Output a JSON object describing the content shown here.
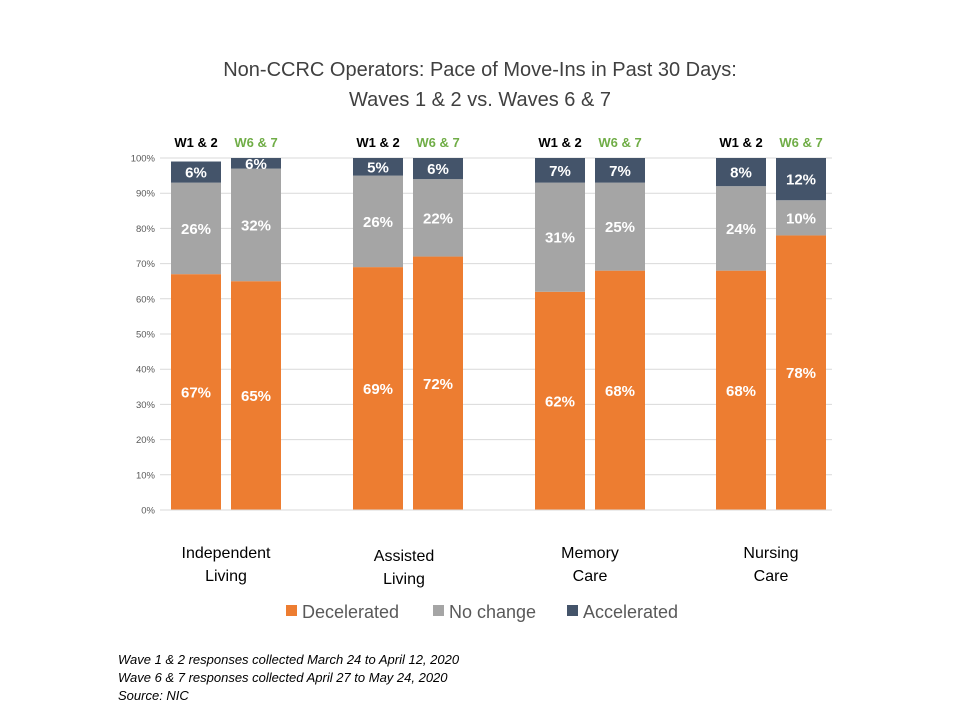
{
  "chart_data": {
    "type": "bar",
    "stacked": true,
    "title_lines": [
      "Non-CCRC Operators: Pace of Move-Ins in Past 30 Days:",
      "Waves 1 & 2 vs. Waves 6 & 7"
    ],
    "categories": [
      {
        "name": "Independent Living",
        "lines": [
          "Independent",
          "Living"
        ]
      },
      {
        "name": "Assisted Living",
        "lines": [
          "Assisted",
          "Living"
        ]
      },
      {
        "name": "Memory Care",
        "lines": [
          "Memory",
          "Care"
        ]
      },
      {
        "name": "Nursing Care",
        "lines": [
          "Nursing",
          "Care"
        ]
      }
    ],
    "waves": [
      "W1 & 2",
      "W6 & 7"
    ],
    "series": [
      {
        "name": "Decelerated",
        "color": "#ED7D31",
        "values": {
          "W1 & 2": [
            67,
            69,
            62,
            68
          ],
          "W6 & 7": [
            65,
            72,
            68,
            78
          ]
        }
      },
      {
        "name": "No change",
        "color": "#A5A5A5",
        "values": {
          "W1 & 2": [
            26,
            26,
            31,
            24
          ],
          "W6 & 7": [
            32,
            22,
            25,
            10
          ]
        }
      },
      {
        "name": "Accelerated",
        "color": "#44546A",
        "values": {
          "W1 & 2": [
            6,
            5,
            7,
            8
          ],
          "W6 & 7": [
            6,
            6,
            7,
            12
          ]
        }
      }
    ],
    "wave_label_colors": {
      "W1 & 2": "#000000",
      "W6 & 7": "#70AD47"
    },
    "ylim": [
      0,
      100
    ],
    "yticks": [
      "0%",
      "10%",
      "20%",
      "30%",
      "40%",
      "50%",
      "60%",
      "70%",
      "80%",
      "90%",
      "100%"
    ],
    "grid": true,
    "legend_position": "bottom"
  },
  "footnotes": [
    "Wave 1 & 2 responses collected March 24 to April 12, 2020",
    "Wave 6 & 7 responses collected April 27 to May 24, 2020",
    "Source: NIC"
  ]
}
